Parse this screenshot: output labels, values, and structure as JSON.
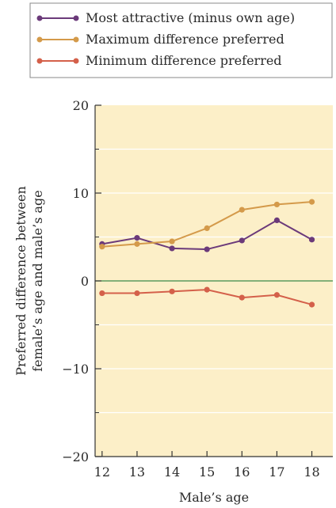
{
  "chart_data": {
    "type": "line",
    "title": "",
    "xlabel": "Male’s age",
    "ylabel_line1": "Preferred difference between",
    "ylabel_line2": "female’s age and male’s age",
    "x": [
      12,
      13,
      14,
      15,
      16,
      17,
      18
    ],
    "xlim": [
      11.8,
      18.6
    ],
    "ylim": [
      -20,
      20
    ],
    "yticks": [
      -20,
      -10,
      0,
      10,
      20
    ],
    "yticks_minor": [
      -15,
      -5,
      5,
      15
    ],
    "grid": "horizontal",
    "legend_position": "top",
    "series": [
      {
        "name": "Most attractive (minus own age)",
        "color": "#6b3a7a",
        "values": [
          4.2,
          4.9,
          3.7,
          3.6,
          4.6,
          6.9,
          4.7
        ]
      },
      {
        "name": "Maximum difference preferred",
        "color": "#d49a4a",
        "values": [
          3.9,
          4.2,
          4.5,
          6.0,
          8.1,
          8.7,
          9.0
        ]
      },
      {
        "name": "Minimum difference preferred",
        "color": "#d4604a",
        "values": [
          -1.4,
          -1.4,
          -1.2,
          -1.0,
          -1.9,
          -1.6,
          -2.7
        ]
      }
    ],
    "colors": {
      "plot_background": "#fcefc8",
      "zero_line": "#3b8a4a",
      "grid_line": "#ffffff",
      "axis": "#333333"
    }
  }
}
